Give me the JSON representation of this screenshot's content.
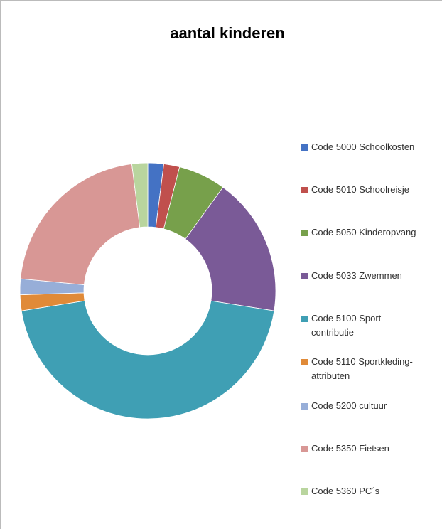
{
  "chart_data": {
    "type": "doughnut",
    "title": "aantal kinderen",
    "categories": [
      "Code 5000 Schoolkosten",
      "Code 5010 Schoolreisje",
      "Code 5050 Kinderopvang",
      "Code 5033 Zwemmen",
      "Code 5100 Sport contributie",
      "Code 5110 Sportkleding-attributen",
      "Code 5200 cultuur",
      "Code 5350 Fietsen",
      "Code 5360 PC´s"
    ],
    "values": [
      2,
      2,
      6,
      17.5,
      45,
      2,
      2,
      21.5,
      2
    ],
    "colors": [
      "#4472c4",
      "#c0504d",
      "#77a04b",
      "#7a5a97",
      "#3f9fb4",
      "#e08a38",
      "#97aed8",
      "#d89795",
      "#b9d59e"
    ],
    "legend": "right"
  }
}
